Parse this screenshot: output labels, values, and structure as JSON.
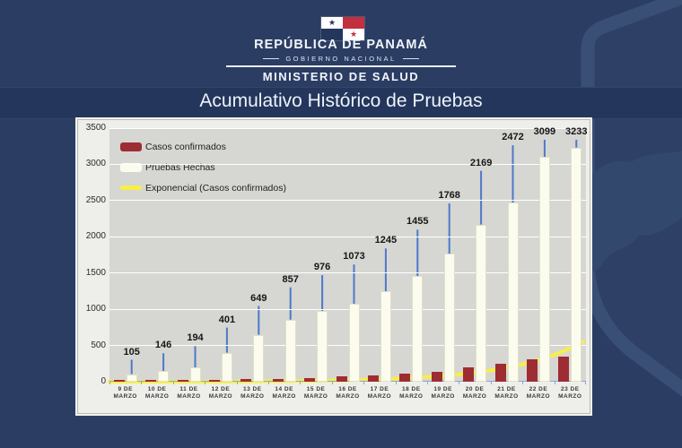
{
  "header": {
    "republic": "REPÚBLICA DE PANAMÁ",
    "government": "GOBIERNO NACIONAL",
    "ministry": "MINISTERIO DE SALUD"
  },
  "title": "Acumulativo Histórico de Pruebas",
  "colors": {
    "background_navy": "#2b3d63",
    "watermark_stroke": "#3a4f76",
    "watermark_map": "#33486d",
    "panel_background": "#eeeeea",
    "plot_background": "#d6d6d3",
    "gridline": "#ffffff",
    "axis_tick_blue": "#8fa6cf",
    "leader_line_blue": "#4d79c7",
    "flag_red": "#c1303c",
    "flag_blue": "#24365c",
    "casos_red": "#9e2c33",
    "pruebas_cream": "#fcfcee",
    "exponencial_yellow": "#f8ef45"
  },
  "chart_data": {
    "type": "bar",
    "title": "Acumulativo Histórico de Pruebas",
    "categories": [
      "9 DE MARZO",
      "10 DE MARZO",
      "11 DE MARZO",
      "12 DE MARZO",
      "13 DE MARZO",
      "14 DE MARZO",
      "15 DE MARZO",
      "16 DE MARZO",
      "17 DE MARZO",
      "18 DE MARZO",
      "19 DE MARZO",
      "20 DE MARZO",
      "21 DE MARZO",
      "22 DE MARZO",
      "23 DE MARZO"
    ],
    "ylim": [
      0,
      3500
    ],
    "yticks": [
      0,
      500,
      1000,
      1500,
      2000,
      2500,
      3000,
      3500
    ],
    "grid": "horizontal",
    "legend_position": "inside-top-left",
    "series": [
      {
        "name": "Casos confirmados",
        "type": "bar",
        "color": "#9e2c33",
        "data_labels": false,
        "values": [
          1,
          8,
          14,
          27,
          36,
          43,
          55,
          69,
          86,
          109,
          137,
          200,
          245,
          313,
          345
        ],
        "note": "unlabeled bars; values estimated from bar heights"
      },
      {
        "name": "Pruebas Hechas",
        "type": "bar",
        "color": "#fcfcee",
        "data_labels": true,
        "values": [
          105,
          146,
          194,
          401,
          649,
          857,
          976,
          1073,
          1245,
          1455,
          1768,
          2169,
          2472,
          3099,
          3233
        ]
      },
      {
        "name": "Exponencial (Casos confirmados)",
        "type": "line",
        "color": "#f8ef45",
        "fit": "exponential",
        "growth_base_estimate": 1.55,
        "end_value_estimate": 520
      }
    ]
  }
}
